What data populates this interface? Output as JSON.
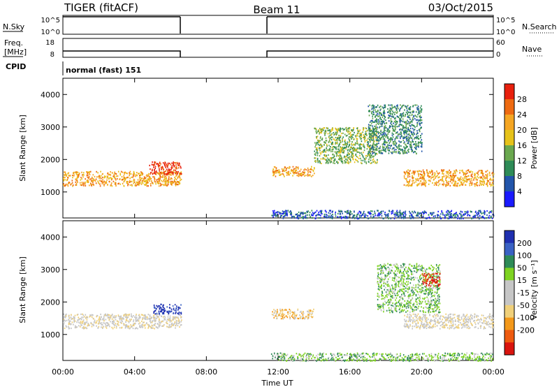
{
  "header": {
    "radar": "TIGER (fitACF)",
    "beam": "Beam 11",
    "date": "03/Oct/2015"
  },
  "strips": {
    "nsky_label": "N.Sky",
    "nsearch_label": "N.Search",
    "noise_ticks": [
      "10^5",
      "10^0"
    ],
    "noise_ticks_right": [
      "10^5",
      "10^0"
    ],
    "freq_label_1": "Freq.",
    "freq_label_2": "[MHz]",
    "freq_ticks": [
      "18",
      "8"
    ],
    "nave_label": "Nave",
    "nave_ticks": [
      "60",
      "0"
    ],
    "cpid_label": "CPID",
    "cpid_text": "normal (fast) 151"
  },
  "colors": {
    "power_scale": [
      "#1a1aff",
      "#2255aa",
      "#2e8b57",
      "#6aa84f",
      "#e6c21a",
      "#f5a623",
      "#ee6a11",
      "#e8200d"
    ],
    "velocity_scale": [
      "#d9140e",
      "#ee5b10",
      "#f3981a",
      "#f0d07a",
      "#c6c6c6",
      "#c6c6c6",
      "#7ed321",
      "#2e8b57",
      "#3a62c4",
      "#1f2fb0"
    ]
  },
  "chart_data": [
    {
      "type": "heatmap",
      "name": "power",
      "ylabel": "Slant Range [km]",
      "xlabel": "",
      "yticks": [
        "1000",
        "2000",
        "3000",
        "4000"
      ],
      "ylim": [
        200,
        4500
      ],
      "xlim": [
        0,
        24
      ],
      "colorbar_label": "Power [dB]",
      "colorbar_ticks": [
        "4",
        "8",
        "12",
        "16",
        "20",
        "24",
        "28"
      ],
      "data_gap_hours": [
        6.6,
        11.6
      ],
      "regions": [
        {
          "t0": 0.0,
          "t1": 6.6,
          "r0": 1200,
          "r1": 1650,
          "level": 5
        },
        {
          "t0": 4.8,
          "t1": 6.6,
          "r0": 1550,
          "r1": 1950,
          "level": 7
        },
        {
          "t0": 11.6,
          "t1": 14.0,
          "r0": 1500,
          "r1": 1800,
          "level": 5
        },
        {
          "t0": 14.0,
          "t1": 17.5,
          "r0": 1900,
          "r1": 3000,
          "level": 3
        },
        {
          "t0": 17.0,
          "t1": 20.0,
          "r0": 2200,
          "r1": 3700,
          "level": 2
        },
        {
          "t0": 19.0,
          "t1": 24.0,
          "r0": 1200,
          "r1": 1700,
          "level": 5
        },
        {
          "t0": 11.6,
          "t1": 24.0,
          "r0": 200,
          "r1": 450,
          "level": 1
        }
      ]
    },
    {
      "type": "heatmap",
      "name": "velocity",
      "ylabel": "Slant Range [km]",
      "xlabel": "Time UT",
      "yticks": [
        "1000",
        "2000",
        "3000",
        "4000"
      ],
      "ylim": [
        200,
        4500
      ],
      "xlim": [
        0,
        24
      ],
      "xticks": [
        "00:00",
        "04:00",
        "08:00",
        "12:00",
        "16:00",
        "20:00",
        "00:00"
      ],
      "colorbar_label": "Velocity [m s⁻¹]",
      "colorbar_ticks": [
        "200",
        "100",
        "50",
        "15",
        "-15",
        "-50",
        "-100",
        "-200"
      ],
      "data_gap_hours": [
        6.6,
        11.6
      ],
      "regions": [
        {
          "t0": 0.0,
          "t1": 6.6,
          "r0": 1200,
          "r1": 1650,
          "level": 4
        },
        {
          "t0": 5.0,
          "t1": 6.6,
          "r0": 1650,
          "r1": 1950,
          "level": 9
        },
        {
          "t0": 11.6,
          "t1": 14.0,
          "r0": 1500,
          "r1": 1800,
          "level": 3
        },
        {
          "t0": 17.5,
          "t1": 21.0,
          "r0": 1700,
          "r1": 3200,
          "level": 6
        },
        {
          "t0": 20.0,
          "t1": 21.0,
          "r0": 2500,
          "r1": 2900,
          "level": 0
        },
        {
          "t0": 19.0,
          "t1": 24.0,
          "r0": 1200,
          "r1": 1650,
          "level": 4
        },
        {
          "t0": 11.6,
          "t1": 24.0,
          "r0": 200,
          "r1": 450,
          "level": 6
        }
      ]
    }
  ]
}
